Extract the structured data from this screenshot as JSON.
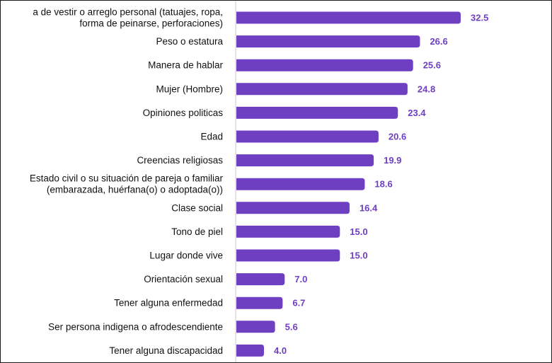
{
  "chart_data": {
    "type": "bar",
    "orientation": "horizontal",
    "categories": [
      [
        "a de vestir o arreglo personal (tatuajes, ropa,",
        "forma de peinarse, perforaciones)"
      ],
      [
        "Peso o estatura"
      ],
      [
        "Manera de hablar"
      ],
      [
        "Mujer (Hombre)"
      ],
      [
        "Opiniones politicas"
      ],
      [
        "Edad"
      ],
      [
        "Creencias religiosas"
      ],
      [
        "Estado civil o su situación de pareja o familiar",
        "(embarazada, huérfana(o) o adoptada(o))"
      ],
      [
        "Clase social"
      ],
      [
        "Tono de piel"
      ],
      [
        "Lugar donde vive"
      ],
      [
        "Orientación sexual"
      ],
      [
        "Tener alguna enfermedad"
      ],
      [
        "Ser persona indigena o afrodescendiente"
      ],
      [
        "Tener alguna discapacidad"
      ]
    ],
    "values": [
      32.5,
      26.6,
      25.6,
      24.8,
      23.4,
      20.6,
      19.9,
      18.6,
      16.4,
      15.0,
      15.0,
      7.0,
      6.7,
      5.6,
      4.0
    ],
    "value_labels": [
      "32.5",
      "26.6",
      "25.6",
      "24.8",
      "23.4",
      "20.6",
      "19.9",
      "18.6",
      "16.4",
      "15.0",
      "15.0",
      "7.0",
      "6.7",
      "5.6",
      "4.0"
    ],
    "xlim": [
      0,
      35
    ],
    "grid": false,
    "bar_color": "#6f3fc2",
    "label_color": "#6f3fc2",
    "title": "",
    "xlabel": "",
    "ylabel": ""
  }
}
